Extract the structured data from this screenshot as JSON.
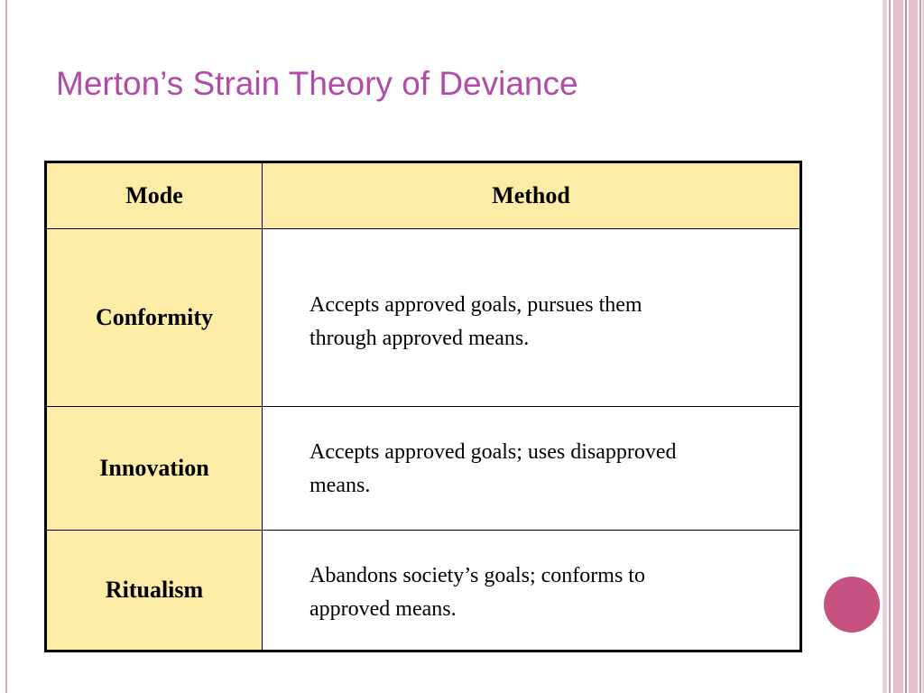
{
  "slide": {
    "title": "Merton’s Strain Theory of Deviance",
    "accent_color": "#b14aa8",
    "header_fill": "#fdeca5"
  },
  "table": {
    "headers": {
      "mode": "Mode",
      "method": "Method"
    },
    "rows": [
      {
        "mode": "Conformity",
        "method_line1": "Accepts approved goals, pursues them",
        "method_line2": "through approved means."
      },
      {
        "mode": "Innovation",
        "method_line1": "Accepts approved goals; uses disapproved",
        "method_line2": "means."
      },
      {
        "mode": "Ritualism",
        "method_line1": "Abandons society’s goals; conforms to",
        "method_line2": "approved means."
      }
    ]
  }
}
